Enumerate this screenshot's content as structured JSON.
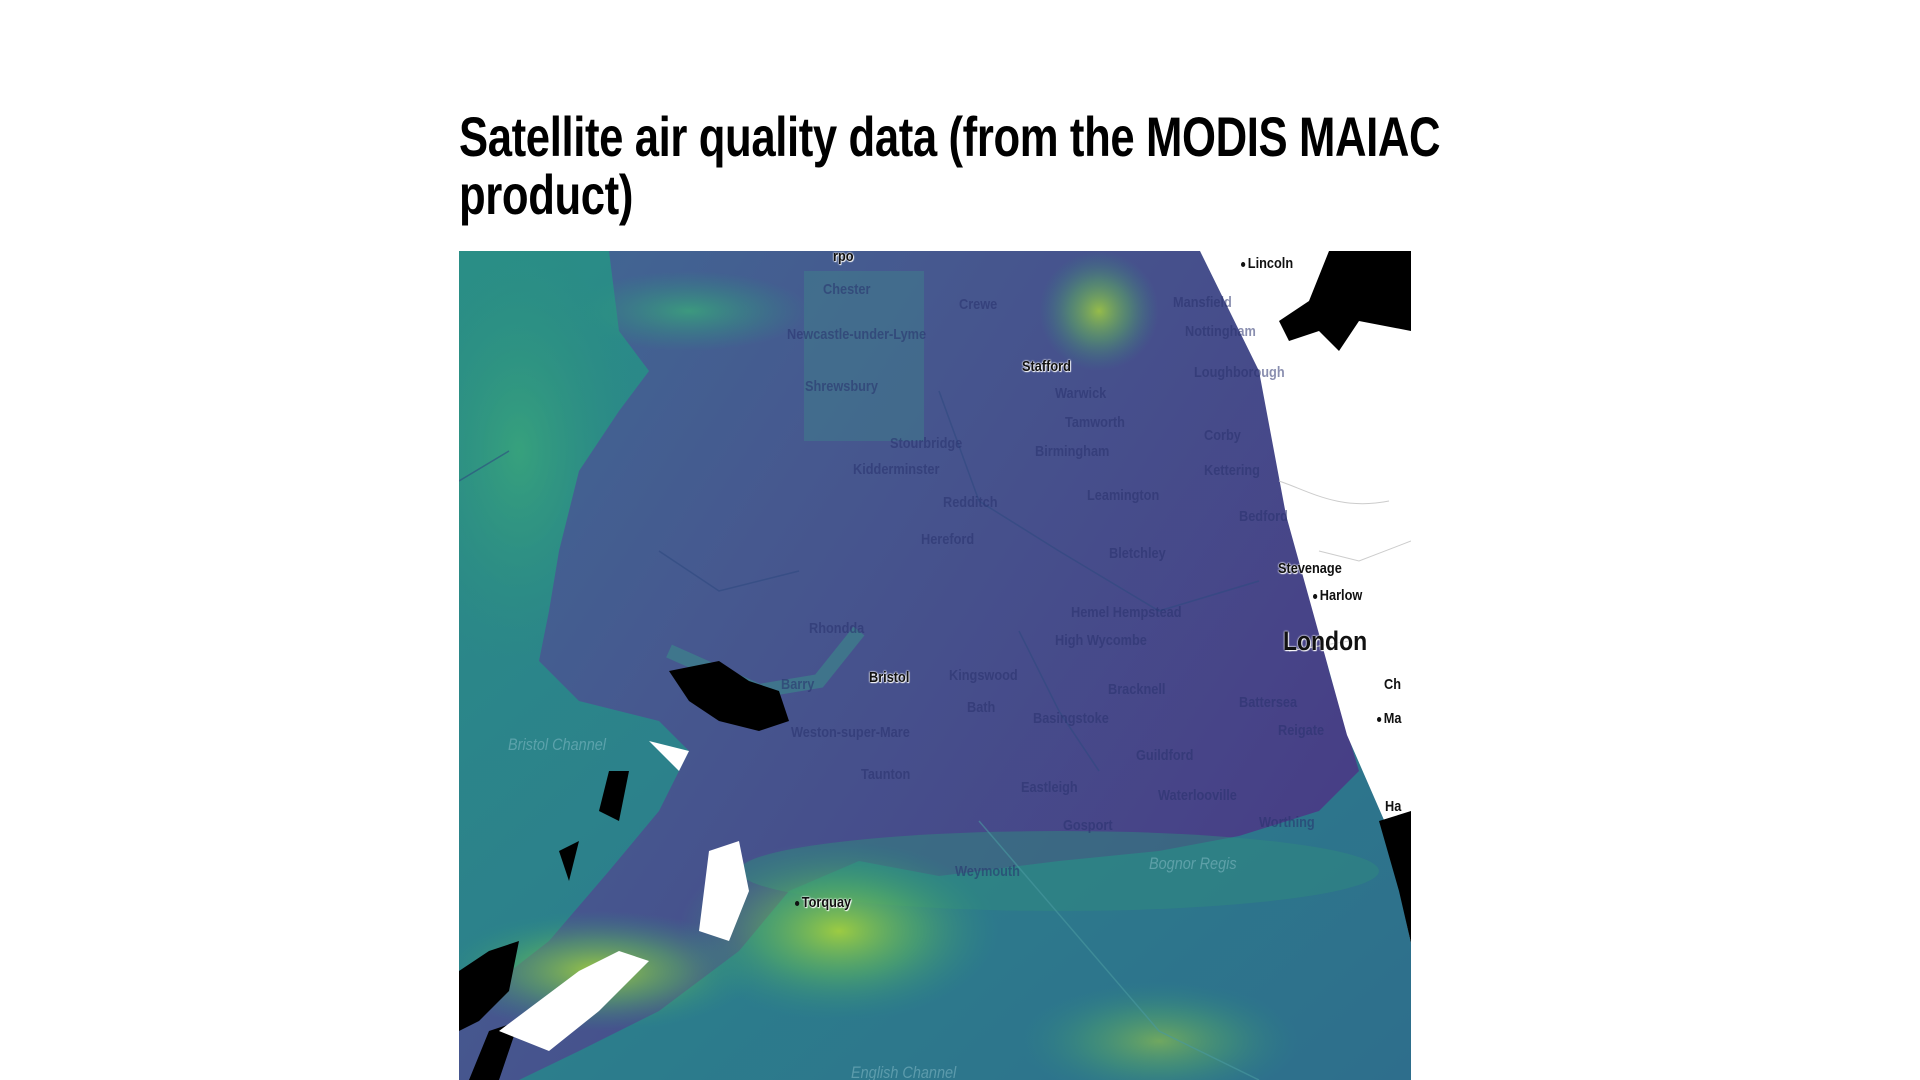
{
  "title": "Satellite air quality data (from the MODIS MAIAC product)",
  "map": {
    "colormap": "viridis",
    "colors": {
      "low": "#46327e",
      "mid": "#277f8e",
      "high": "#bddf26",
      "no_data": "#ffffff",
      "masked": "#000000"
    },
    "labels": {
      "rpo": "rpo",
      "chester": "Chester",
      "crewe": "Crewe",
      "lincoln": "Lincoln",
      "mansfield": "Mansfield",
      "nottingham": "Nottingham",
      "newcastle": "Newcastle-under-Lyme",
      "stafford": "Stafford",
      "loughborough": "Loughborough",
      "shrewsbury": "Shrewsbury",
      "warwick": "Warwick",
      "tamworth": "Tamworth",
      "corby": "Corby",
      "stourbridge": "Stourbridge",
      "birmingham": "Birmingham",
      "kidderminster": "Kidderminster",
      "kettering": "Kettering",
      "leamington": "Leamington",
      "redditch": "Redditch",
      "bedford": "Bedford",
      "hereford": "Hereford",
      "bletchley": "Bletchley",
      "stevenage": "Stevenage",
      "harlow": "Harlow",
      "hemel": "Hemel Hempstead",
      "rhondda": "Rhondda",
      "wycombe": "High Wycombe",
      "london": "London",
      "barry": "Barry",
      "bristol": "Bristol",
      "kingswood": "Kingswood",
      "bath": "Bath",
      "bracknell": "Bracknell",
      "battersea": "Battersea",
      "ch": "Ch",
      "basingstoke": "Basingstoke",
      "reigate": "Reigate",
      "ma": "Ma",
      "weston": "Weston-super-Mare",
      "bristol_channel": "Bristol Channel",
      "guildford": "Guildford",
      "taunton": "Taunton",
      "eastleigh": "Eastleigh",
      "waterlooville": "Waterlooville",
      "ha": "Ha",
      "worthing": "Worthing",
      "gosport": "Gosport",
      "weymouth": "Weymouth",
      "bognor": "Bognor Regis",
      "torquay": "Torquay",
      "english_channel": "English Channel"
    }
  }
}
